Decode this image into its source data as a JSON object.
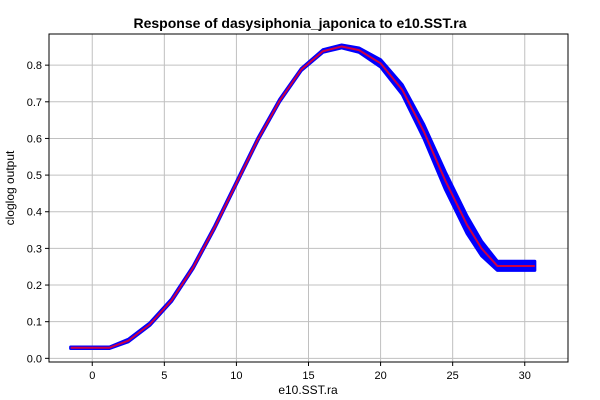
{
  "chart_data": {
    "type": "line",
    "title": "Response of dasysiphonia_japonica to e10.SST.ra",
    "xlabel": "e10.SST.ra",
    "ylabel": "cloglog output",
    "xlim": [
      -3,
      33
    ],
    "ylim": [
      -0.01,
      0.885
    ],
    "xticks": [
      0,
      5,
      10,
      15,
      20,
      25,
      30
    ],
    "yticks": [
      0.0,
      0.1,
      0.2,
      0.3,
      0.4,
      0.5,
      0.6,
      0.7,
      0.8
    ],
    "ytick_labels": [
      "0.0",
      "0.1",
      "0.2",
      "0.3",
      "0.4",
      "0.5",
      "0.6",
      "0.7",
      "0.8"
    ],
    "grid": true,
    "series": [
      {
        "role": "variability band",
        "color": "#0000ff",
        "x": [
          -1.5,
          1.2,
          2.5,
          4,
          5.5,
          7,
          8.5,
          10,
          11.5,
          13,
          14.5,
          16,
          17.3,
          18.5,
          20,
          21.5,
          23,
          24.5,
          26,
          27,
          28.1,
          30.7
        ],
        "lower": [
          0.027,
          0.027,
          0.045,
          0.09,
          0.155,
          0.245,
          0.355,
          0.475,
          0.595,
          0.7,
          0.785,
          0.835,
          0.847,
          0.835,
          0.795,
          0.72,
          0.6,
          0.46,
          0.34,
          0.28,
          0.24,
          0.24
        ],
        "upper": [
          0.031,
          0.031,
          0.052,
          0.097,
          0.162,
          0.252,
          0.362,
          0.482,
          0.602,
          0.707,
          0.791,
          0.842,
          0.855,
          0.847,
          0.815,
          0.747,
          0.638,
          0.508,
          0.388,
          0.32,
          0.265,
          0.265
        ]
      },
      {
        "role": "mean response",
        "color": "#cc0044",
        "x": [
          -1.5,
          1.2,
          2.5,
          4,
          5.5,
          7,
          8.5,
          10,
          11.5,
          13,
          14.5,
          16,
          17.3,
          18.5,
          20,
          21.5,
          23,
          24.5,
          26,
          27,
          28.1,
          30.7
        ],
        "y": [
          0.029,
          0.029,
          0.048,
          0.093,
          0.158,
          0.248,
          0.358,
          0.478,
          0.598,
          0.703,
          0.788,
          0.838,
          0.851,
          0.841,
          0.805,
          0.733,
          0.619,
          0.484,
          0.364,
          0.3,
          0.252,
          0.252
        ]
      }
    ]
  }
}
